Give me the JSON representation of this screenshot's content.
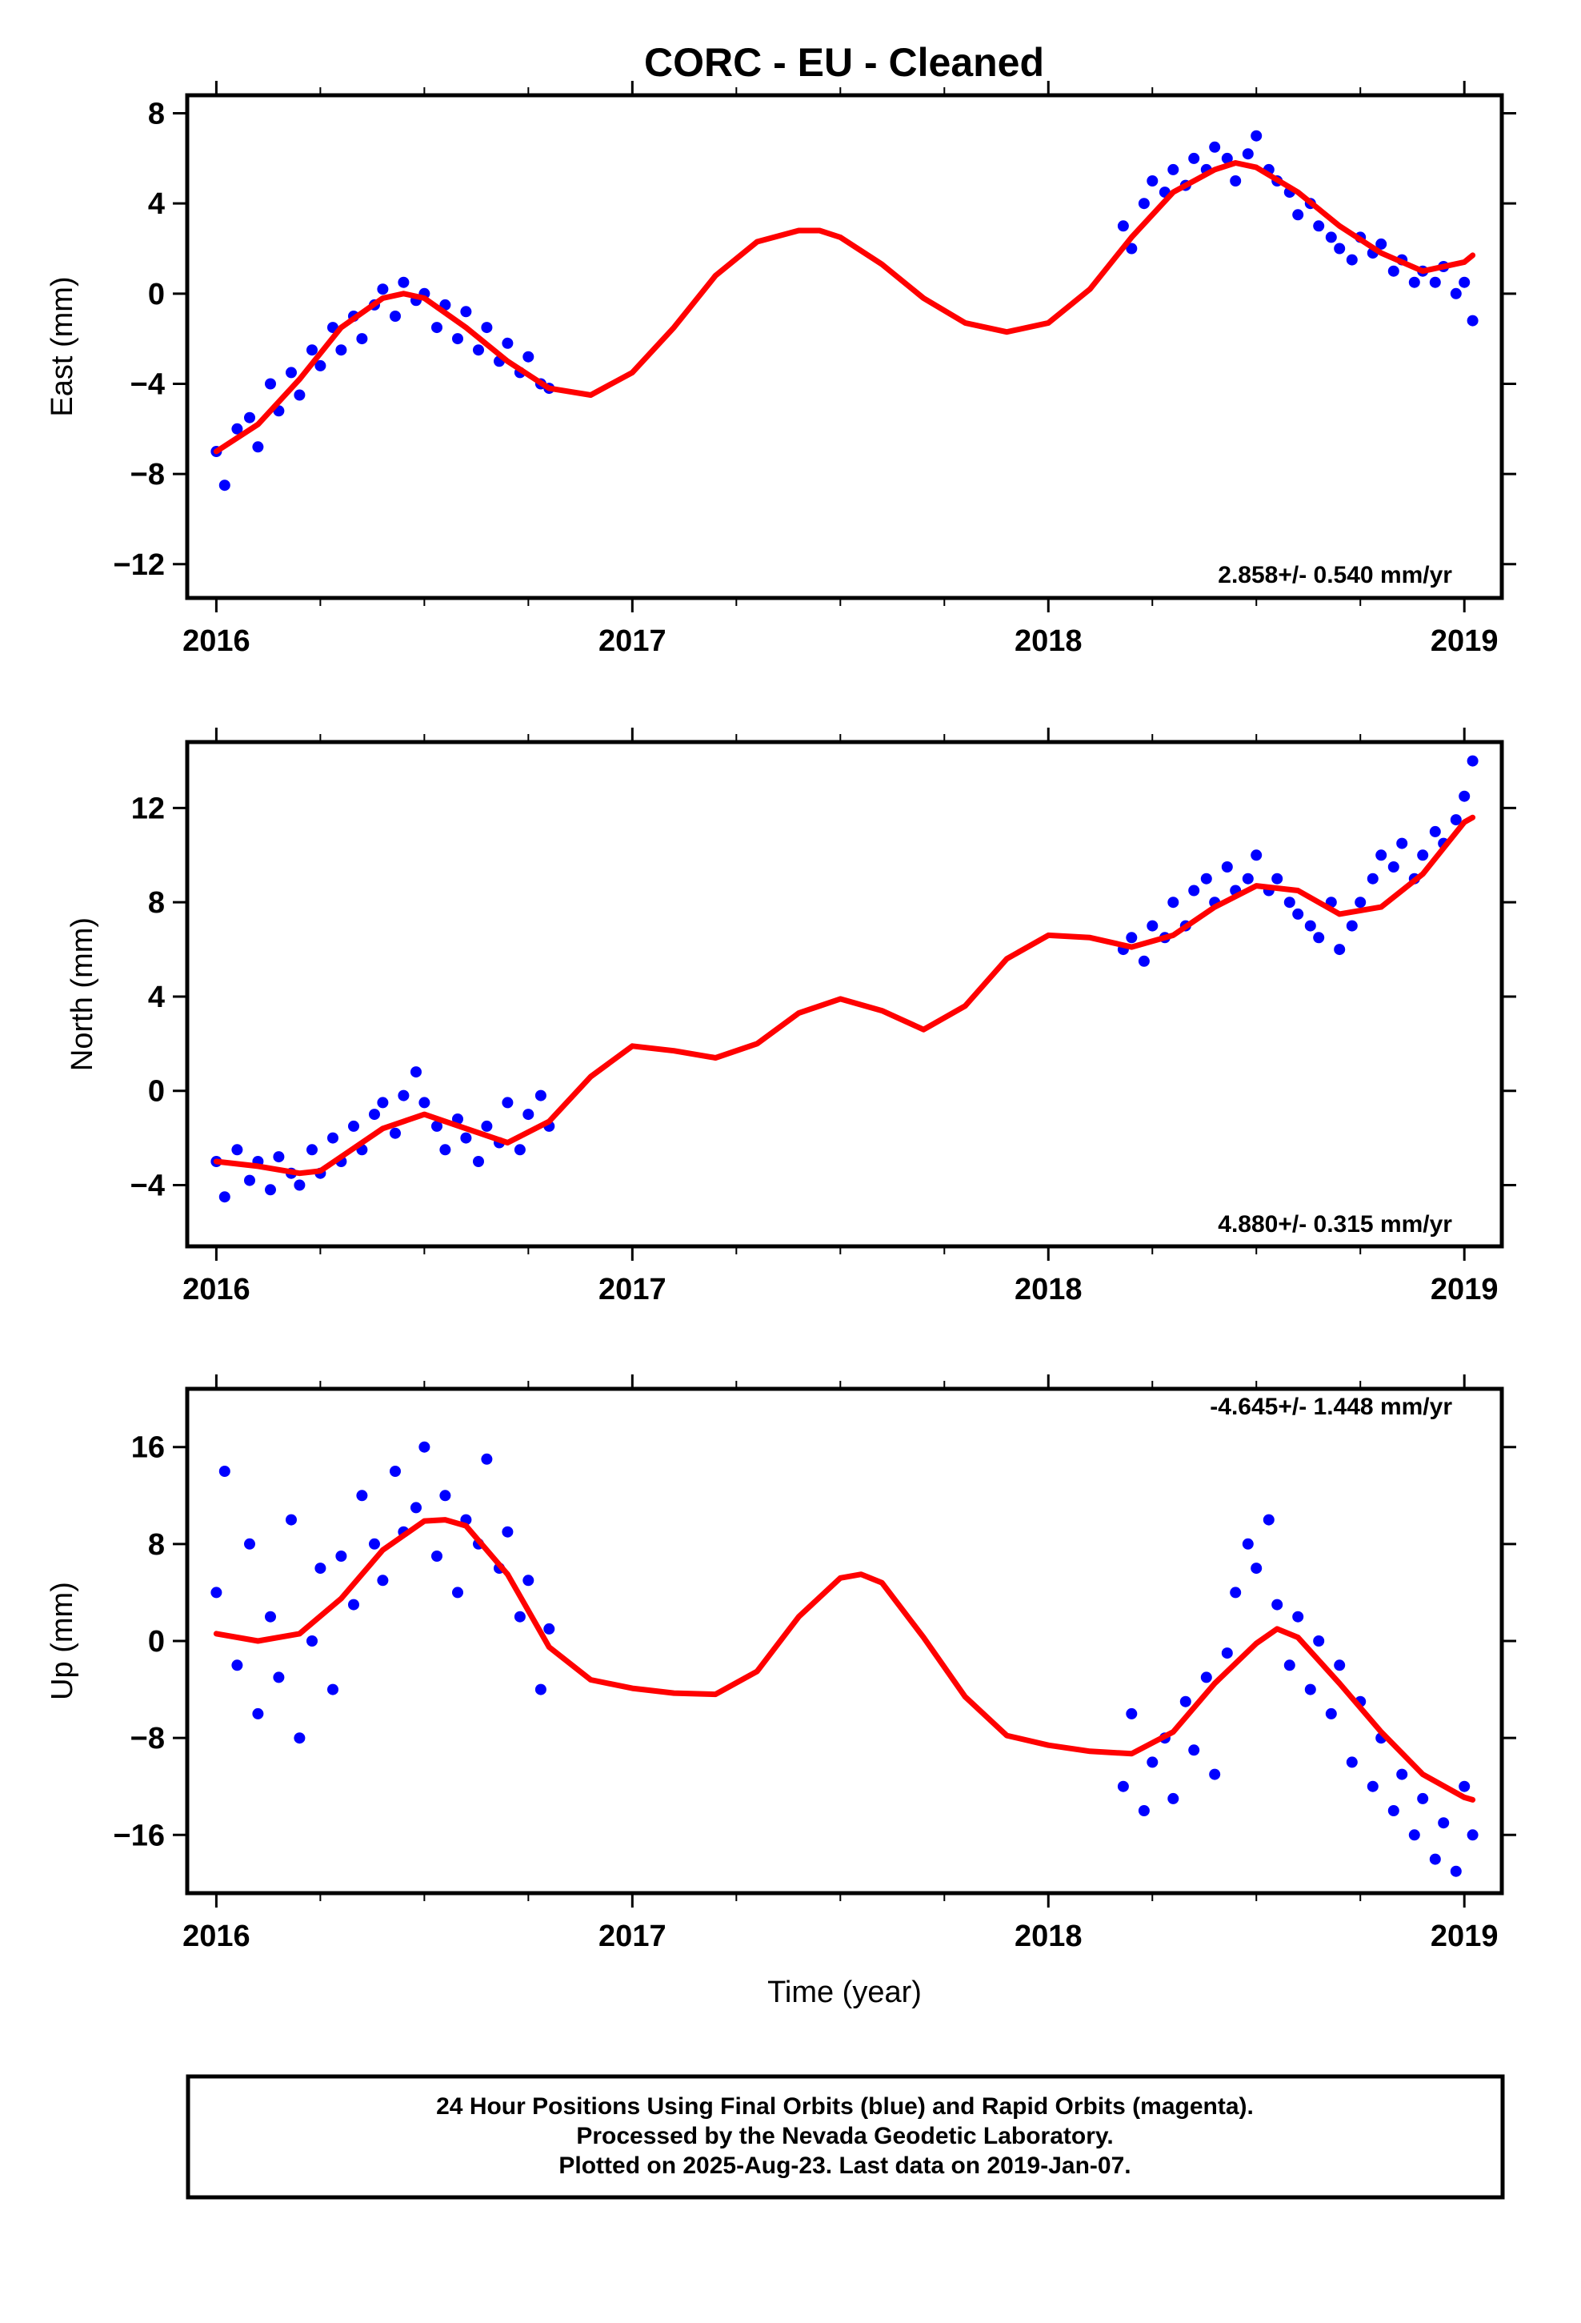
{
  "title": "CORC  - EU - Cleaned",
  "footer": {
    "line1": "24 Hour Positions Using Final Orbits (blue) and Rapid Orbits (magenta).",
    "line2": "Processed by the Nevada Geodetic Laboratory.",
    "line3": "Plotted on 2025-Aug-23. Last data on 2019-Jan-07."
  },
  "colors": {
    "points": "#0000ff",
    "model": "#ff0000",
    "frame": "#000000"
  },
  "chart_data": [
    {
      "type": "scatter",
      "ylabel": "East (mm)",
      "xlabel": "",
      "rate_label": "2.858+/- 0.540 mm/yr",
      "xlim": [
        2015.93,
        2019.09
      ],
      "ylim": [
        -13.5,
        8.8
      ],
      "xticks": [
        2016,
        2017,
        2018,
        2019
      ],
      "yticks": [
        -12,
        -8,
        -4,
        0,
        4,
        8
      ],
      "ytick_labels": [
        "−12",
        "−8",
        "−4",
        "0",
        "4",
        "8"
      ],
      "series": [
        {
          "name": "",
          "kind": "points",
          "x": [
            2016.0,
            2016.02,
            2016.05,
            2016.08,
            2016.1,
            2016.13,
            2016.15,
            2016.18,
            2016.2,
            2016.23,
            2016.25,
            2016.28,
            2016.3,
            2016.33,
            2016.35,
            2016.38,
            2016.4,
            2016.43,
            2016.45,
            2016.48,
            2016.5,
            2016.53,
            2016.55,
            2016.58,
            2016.6,
            2016.63,
            2016.65,
            2016.68,
            2016.7,
            2016.73,
            2016.75,
            2016.78,
            2016.8,
            2018.18,
            2018.2,
            2018.23,
            2018.25,
            2018.28,
            2018.3,
            2018.33,
            2018.35,
            2018.38,
            2018.4,
            2018.43,
            2018.45,
            2018.48,
            2018.5,
            2018.53,
            2018.55,
            2018.58,
            2018.6,
            2018.63,
            2018.65,
            2018.68,
            2018.7,
            2018.73,
            2018.75,
            2018.78,
            2018.8,
            2018.83,
            2018.85,
            2018.88,
            2018.9,
            2018.93,
            2018.95,
            2018.98,
            2019.0,
            2019.02
          ],
          "y": [
            -7.0,
            -8.5,
            -6.0,
            -5.5,
            -6.8,
            -4.0,
            -5.2,
            -3.5,
            -4.5,
            -2.5,
            -3.2,
            -1.5,
            -2.5,
            -1.0,
            -2.0,
            -0.5,
            0.2,
            -1.0,
            0.5,
            -0.3,
            0.0,
            -1.5,
            -0.5,
            -2.0,
            -0.8,
            -2.5,
            -1.5,
            -3.0,
            -2.2,
            -3.5,
            -2.8,
            -4.0,
            -4.2,
            3.0,
            2.0,
            4.0,
            5.0,
            4.5,
            5.5,
            4.8,
            6.0,
            5.5,
            6.5,
            6.0,
            5.0,
            6.2,
            7.0,
            5.5,
            5.0,
            4.5,
            3.5,
            4.0,
            3.0,
            2.5,
            2.0,
            1.5,
            2.5,
            1.8,
            2.2,
            1.0,
            1.5,
            0.5,
            1.0,
            0.5,
            1.2,
            0.0,
            0.5,
            -1.2
          ]
        },
        {
          "name": "",
          "kind": "model",
          "x": [
            2016.0,
            2016.1,
            2016.2,
            2016.3,
            2016.4,
            2016.45,
            2016.5,
            2016.6,
            2016.7,
            2016.8,
            2016.9,
            2017.0,
            2017.1,
            2017.2,
            2017.3,
            2017.4,
            2017.45,
            2017.5,
            2017.6,
            2017.7,
            2017.8,
            2017.9,
            2018.0,
            2018.1,
            2018.2,
            2018.3,
            2018.4,
            2018.45,
            2018.5,
            2018.6,
            2018.7,
            2018.8,
            2018.9,
            2019.0,
            2019.02
          ],
          "y": [
            -7.0,
            -5.8,
            -3.8,
            -1.5,
            -0.2,
            0.0,
            -0.2,
            -1.5,
            -3.0,
            -4.2,
            -4.5,
            -3.5,
            -1.5,
            0.8,
            2.3,
            2.8,
            2.8,
            2.5,
            1.3,
            -0.2,
            -1.3,
            -1.7,
            -1.3,
            0.2,
            2.5,
            4.5,
            5.5,
            5.8,
            5.6,
            4.5,
            3.0,
            1.8,
            1.0,
            1.4,
            1.7
          ]
        }
      ]
    },
    {
      "type": "scatter",
      "ylabel": "North (mm)",
      "xlabel": "",
      "rate_label": "4.880+/- 0.315 mm/yr",
      "xlim": [
        2015.93,
        2019.09
      ],
      "ylim": [
        -6.6,
        14.8
      ],
      "xticks": [
        2016,
        2017,
        2018,
        2019
      ],
      "yticks": [
        -4,
        0,
        4,
        8,
        12
      ],
      "ytick_labels": [
        "−4",
        "0",
        "4",
        "8",
        "12"
      ],
      "series": [
        {
          "name": "",
          "kind": "points",
          "x": [
            2016.0,
            2016.02,
            2016.05,
            2016.08,
            2016.1,
            2016.13,
            2016.15,
            2016.18,
            2016.2,
            2016.23,
            2016.25,
            2016.28,
            2016.3,
            2016.33,
            2016.35,
            2016.38,
            2016.4,
            2016.43,
            2016.45,
            2016.48,
            2016.5,
            2016.53,
            2016.55,
            2016.58,
            2016.6,
            2016.63,
            2016.65,
            2016.68,
            2016.7,
            2016.73,
            2016.75,
            2016.78,
            2016.8,
            2018.18,
            2018.2,
            2018.23,
            2018.25,
            2018.28,
            2018.3,
            2018.33,
            2018.35,
            2018.38,
            2018.4,
            2018.43,
            2018.45,
            2018.48,
            2018.5,
            2018.53,
            2018.55,
            2018.58,
            2018.6,
            2018.63,
            2018.65,
            2018.68,
            2018.7,
            2018.73,
            2018.75,
            2018.78,
            2018.8,
            2018.83,
            2018.85,
            2018.88,
            2018.9,
            2018.93,
            2018.95,
            2018.98,
            2019.0,
            2019.02
          ],
          "y": [
            -3.0,
            -4.5,
            -2.5,
            -3.8,
            -3.0,
            -4.2,
            -2.8,
            -3.5,
            -4.0,
            -2.5,
            -3.5,
            -2.0,
            -3.0,
            -1.5,
            -2.5,
            -1.0,
            -0.5,
            -1.8,
            -0.2,
            0.8,
            -0.5,
            -1.5,
            -2.5,
            -1.2,
            -2.0,
            -3.0,
            -1.5,
            -2.2,
            -0.5,
            -2.5,
            -1.0,
            -0.2,
            -1.5,
            6.0,
            6.5,
            5.5,
            7.0,
            6.5,
            8.0,
            7.0,
            8.5,
            9.0,
            8.0,
            9.5,
            8.5,
            9.0,
            10.0,
            8.5,
            9.0,
            8.0,
            7.5,
            7.0,
            6.5,
            8.0,
            6.0,
            7.0,
            8.0,
            9.0,
            10.0,
            9.5,
            10.5,
            9.0,
            10.0,
            11.0,
            10.5,
            11.5,
            12.5,
            14.0
          ]
        },
        {
          "name": "",
          "kind": "model",
          "x": [
            2016.0,
            2016.1,
            2016.2,
            2016.25,
            2016.3,
            2016.4,
            2016.5,
            2016.6,
            2016.7,
            2016.8,
            2016.9,
            2017.0,
            2017.1,
            2017.2,
            2017.3,
            2017.4,
            2017.5,
            2017.6,
            2017.7,
            2017.8,
            2017.9,
            2018.0,
            2018.1,
            2018.2,
            2018.3,
            2018.4,
            2018.5,
            2018.6,
            2018.7,
            2018.8,
            2018.9,
            2019.0,
            2019.02
          ],
          "y": [
            -3.0,
            -3.2,
            -3.5,
            -3.4,
            -2.8,
            -1.6,
            -1.0,
            -1.6,
            -2.2,
            -1.3,
            0.6,
            1.9,
            1.7,
            1.4,
            2.0,
            3.3,
            3.9,
            3.4,
            2.6,
            3.6,
            5.6,
            6.6,
            6.5,
            6.1,
            6.6,
            7.8,
            8.7,
            8.5,
            7.5,
            7.8,
            9.2,
            11.4,
            11.6
          ]
        }
      ]
    },
    {
      "type": "scatter",
      "ylabel": "Up (mm)",
      "xlabel": "Time (year)",
      "rate_label": "-4.645+/- 1.448 mm/yr",
      "xlim": [
        2015.93,
        2019.09
      ],
      "ylim": [
        -20.8,
        20.8
      ],
      "xticks": [
        2016,
        2017,
        2018,
        2019
      ],
      "yticks": [
        -16,
        -8,
        0,
        8,
        16
      ],
      "ytick_labels": [
        "−16",
        "−8",
        "0",
        "8",
        "16"
      ],
      "series": [
        {
          "name": "",
          "kind": "points",
          "x": [
            2016.0,
            2016.02,
            2016.05,
            2016.08,
            2016.1,
            2016.13,
            2016.15,
            2016.18,
            2016.2,
            2016.23,
            2016.25,
            2016.28,
            2016.3,
            2016.33,
            2016.35,
            2016.38,
            2016.4,
            2016.43,
            2016.45,
            2016.48,
            2016.5,
            2016.53,
            2016.55,
            2016.58,
            2016.6,
            2016.63,
            2016.65,
            2016.68,
            2016.7,
            2016.73,
            2016.75,
            2016.78,
            2016.8,
            2018.18,
            2018.2,
            2018.23,
            2018.25,
            2018.28,
            2018.3,
            2018.33,
            2018.35,
            2018.38,
            2018.4,
            2018.43,
            2018.45,
            2018.48,
            2018.5,
            2018.53,
            2018.55,
            2018.58,
            2018.6,
            2018.63,
            2018.65,
            2018.68,
            2018.7,
            2018.73,
            2018.75,
            2018.78,
            2018.8,
            2018.83,
            2018.85,
            2018.88,
            2018.9,
            2018.93,
            2018.95,
            2018.98,
            2019.0,
            2019.02
          ],
          "y": [
            4.0,
            14.0,
            -2.0,
            8.0,
            -6.0,
            2.0,
            -3.0,
            10.0,
            -8.0,
            0.0,
            6.0,
            -4.0,
            7.0,
            3.0,
            12.0,
            8.0,
            5.0,
            14.0,
            9.0,
            11.0,
            16.0,
            7.0,
            12.0,
            4.0,
            10.0,
            8.0,
            15.0,
            6.0,
            9.0,
            2.0,
            5.0,
            -4.0,
            1.0,
            -12.0,
            -6.0,
            -14.0,
            -10.0,
            -8.0,
            -13.0,
            -5.0,
            -9.0,
            -3.0,
            -11.0,
            -1.0,
            4.0,
            8.0,
            6.0,
            10.0,
            3.0,
            -2.0,
            2.0,
            -4.0,
            0.0,
            -6.0,
            -2.0,
            -10.0,
            -5.0,
            -12.0,
            -8.0,
            -14.0,
            -11.0,
            -16.0,
            -13.0,
            -18.0,
            -15.0,
            -19.0,
            -12.0,
            -16.0
          ]
        },
        {
          "name": "",
          "kind": "model",
          "x": [
            2016.0,
            2016.1,
            2016.2,
            2016.3,
            2016.4,
            2016.5,
            2016.55,
            2016.6,
            2016.7,
            2016.8,
            2016.9,
            2017.0,
            2017.1,
            2017.2,
            2017.3,
            2017.4,
            2017.5,
            2017.55,
            2017.6,
            2017.7,
            2017.8,
            2017.9,
            2018.0,
            2018.1,
            2018.2,
            2018.3,
            2018.4,
            2018.5,
            2018.55,
            2018.6,
            2018.7,
            2018.8,
            2018.9,
            2019.0,
            2019.02
          ],
          "y": [
            0.6,
            0.0,
            0.6,
            3.5,
            7.5,
            9.9,
            10.0,
            9.5,
            5.5,
            -0.5,
            -3.2,
            -3.9,
            -4.3,
            -4.4,
            -2.5,
            2.0,
            5.2,
            5.5,
            4.8,
            0.3,
            -4.6,
            -7.8,
            -8.6,
            -9.1,
            -9.3,
            -7.5,
            -3.5,
            -0.2,
            1.0,
            0.3,
            -3.5,
            -7.5,
            -11.0,
            -12.9,
            -13.1
          ]
        }
      ]
    }
  ]
}
